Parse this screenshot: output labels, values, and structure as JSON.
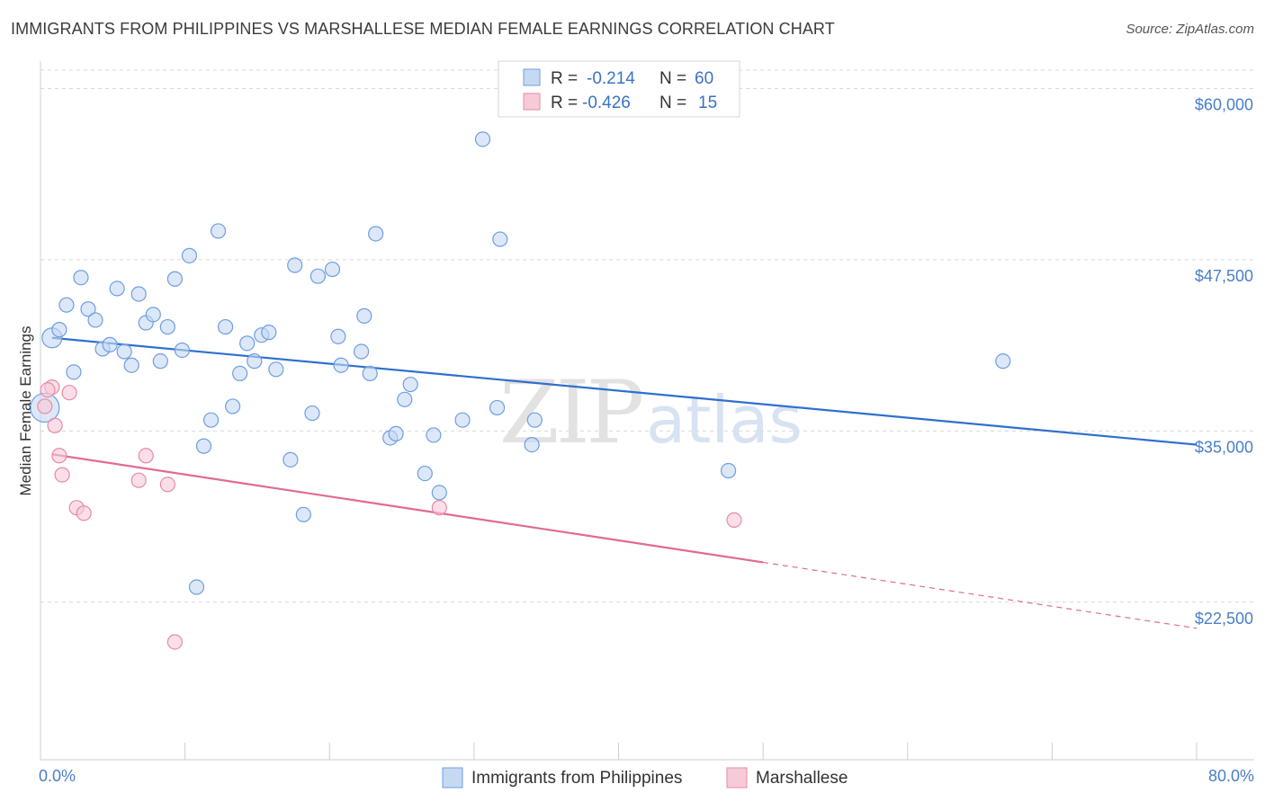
{
  "title": "IMMIGRANTS FROM PHILIPPINES VS MARSHALLESE MEDIAN FEMALE EARNINGS CORRELATION CHART",
  "source": "Source: ZipAtlas.com",
  "watermark": {
    "zip": "ZIP",
    "atlas": "atlas"
  },
  "colors": {
    "blue": "#6d9ee0",
    "blue_fill": "#c5d9f3",
    "blue_line": "#2f6fcd",
    "pink": "#e88aa7",
    "pink_fill": "#f7cad8",
    "pink_line": "#e06a93",
    "grid": "#d9d9d9",
    "tick_text": "#4a7ec7"
  },
  "legend": {
    "rows": [
      {
        "r_label": "R =",
        "r_value": "-0.214",
        "n_label": "N =",
        "n_value": "60"
      },
      {
        "r_label": "R =",
        "r_value": "-0.426",
        "n_label": "N =",
        "n_value": "15"
      }
    ]
  },
  "chart_data": {
    "type": "scatter",
    "xlabel": "",
    "ylabel": "Median Female Earnings",
    "xlim": [
      0,
      80
    ],
    "ylim": [
      11000,
      62000
    ],
    "x_tick_labels": [
      "0.0%",
      "80.0%"
    ],
    "y_ticks": [
      22500,
      35000,
      47500,
      60000
    ],
    "y_tick_labels": [
      "$22,500",
      "$35,000",
      "$47,500",
      "$60,000"
    ],
    "grid": "horizontal dashed",
    "legend_placement": "top-center",
    "series": [
      {
        "name": "Immigrants from Philippines",
        "color": "blue",
        "points": [
          [
            0.3,
            36700
          ],
          [
            0.8,
            41800
          ],
          [
            1.3,
            42400
          ],
          [
            1.8,
            44200
          ],
          [
            2.3,
            39300
          ],
          [
            2.8,
            46200
          ],
          [
            3.3,
            43900
          ],
          [
            3.8,
            43100
          ],
          [
            4.3,
            41000
          ],
          [
            4.8,
            41300
          ],
          [
            5.3,
            45400
          ],
          [
            5.8,
            40800
          ],
          [
            6.3,
            39800
          ],
          [
            6.8,
            45000
          ],
          [
            7.3,
            42900
          ],
          [
            7.8,
            43500
          ],
          [
            8.3,
            40100
          ],
          [
            8.8,
            42600
          ],
          [
            9.3,
            46100
          ],
          [
            9.8,
            40900
          ],
          [
            10.3,
            47800
          ],
          [
            10.8,
            23600
          ],
          [
            11.3,
            33900
          ],
          [
            11.8,
            35800
          ],
          [
            12.3,
            49600
          ],
          [
            12.8,
            42600
          ],
          [
            13.3,
            36800
          ],
          [
            13.8,
            39200
          ],
          [
            14.3,
            41400
          ],
          [
            14.8,
            40100
          ],
          [
            15.3,
            42000
          ],
          [
            15.8,
            42200
          ],
          [
            16.3,
            39500
          ],
          [
            17.3,
            32900
          ],
          [
            17.6,
            47100
          ],
          [
            18.2,
            28900
          ],
          [
            18.8,
            36300
          ],
          [
            19.2,
            46300
          ],
          [
            20.2,
            46800
          ],
          [
            20.6,
            41900
          ],
          [
            20.8,
            39800
          ],
          [
            22.2,
            40800
          ],
          [
            22.4,
            43400
          ],
          [
            22.8,
            39200
          ],
          [
            23.2,
            49400
          ],
          [
            24.2,
            34500
          ],
          [
            24.6,
            34800
          ],
          [
            25.2,
            37300
          ],
          [
            25.6,
            38400
          ],
          [
            26.6,
            31900
          ],
          [
            27.2,
            34700
          ],
          [
            27.6,
            30500
          ],
          [
            29.2,
            35800
          ],
          [
            30.6,
            56300
          ],
          [
            31.6,
            36700
          ],
          [
            31.8,
            49000
          ],
          [
            34.0,
            34000
          ],
          [
            34.2,
            35800
          ],
          [
            47.6,
            32100
          ],
          [
            66.6,
            40100
          ]
        ],
        "trend": {
          "x": [
            0.8,
            80
          ],
          "y": [
            41800,
            34000
          ]
        }
      },
      {
        "name": "Marshallese",
        "color": "pink",
        "points": [
          [
            0.3,
            36800
          ],
          [
            0.8,
            38200
          ],
          [
            1.0,
            35400
          ],
          [
            1.3,
            33200
          ],
          [
            1.5,
            31800
          ],
          [
            2.0,
            37800
          ],
          [
            2.5,
            29400
          ],
          [
            3.0,
            29000
          ],
          [
            6.8,
            31400
          ],
          [
            7.3,
            33200
          ],
          [
            8.8,
            31100
          ],
          [
            9.3,
            19600
          ],
          [
            27.6,
            29400
          ],
          [
            48.0,
            28500
          ],
          [
            0.5,
            38000
          ]
        ],
        "trend": {
          "x": [
            0.8,
            80
          ],
          "y": [
            33300,
            20600
          ],
          "solid_until_x": 50
        }
      }
    ]
  }
}
